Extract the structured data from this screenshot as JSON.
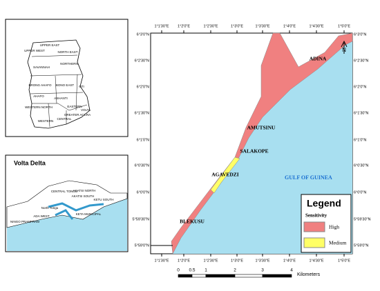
{
  "ghana_inset": {
    "regions": [
      "UPPER EAST",
      "UPPER WEST",
      "NORTH EAST",
      "SAVANNAH",
      "NORTHERN",
      "BRONG AHAFO",
      "BONO EAST",
      "OTI",
      "AHAFO",
      "ASHANTI",
      "WESTERN NORTH",
      "EASTERN",
      "VOLTA",
      "GREATER ACCRA",
      "CENTRAL",
      "WESTERN"
    ]
  },
  "delta_inset": {
    "title": "Volta Delta",
    "labels": [
      "CENTRAL TONGU",
      "AKATSI NORTH",
      "AKATSI SOUTH",
      "KETU SOUTH",
      "North Tongu",
      "ADA WEST",
      "KETA MUNICIPAL",
      "NINGO PRAMPRAM"
    ]
  },
  "main_map": {
    "longitudes": [
      "1°1'30\"E",
      "1°2'0\"E",
      "1°2'30\"E",
      "1°3'0\"E",
      "1°3'30\"E",
      "1°4'0\"E",
      "1°4'30\"E",
      "1°5'0\"E"
    ],
    "latitudes": [
      "6°3'0\"N",
      "6°2'30\"N",
      "6°2'0\"N",
      "6°1'30\"N",
      "6°1'0\"N",
      "6°0'30\"N",
      "6°0'0\"N",
      "5°59'30\"N",
      "5°59'0\"N"
    ],
    "places": [
      "ADINA",
      "AMUTSINU",
      "SALAKOPE",
      "AGAVEDZI",
      "BLEKUSU"
    ],
    "sea": "GULF OF GUINEA",
    "north": "N"
  },
  "legend": {
    "title": "Legend",
    "subtitle": "Sensitivity",
    "items": [
      {
        "label": "High",
        "color": "#f08080"
      },
      {
        "label": "Medium",
        "color": "#ffff66"
      }
    ]
  },
  "scale_bar": {
    "labels": [
      "0",
      "0.5",
      "1",
      "2",
      "3",
      "4"
    ],
    "unit": "Kilometers"
  }
}
